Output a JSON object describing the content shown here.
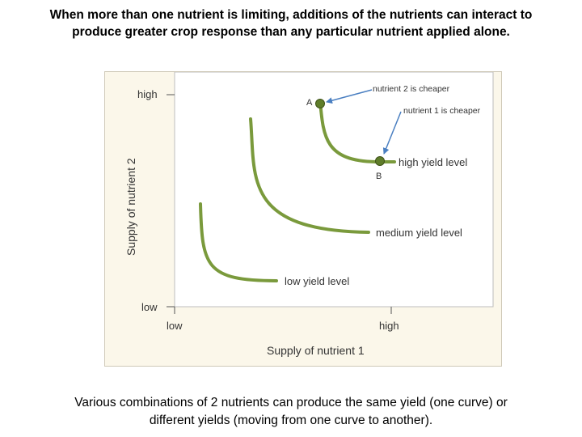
{
  "title": {
    "line1": "When more than one nutrient is limiting, additions of the nutrients can interact to",
    "line2": "produce greater crop response than any particular nutrient applied alone."
  },
  "diagram": {
    "y_axis_label": "Supply of nutrient 2",
    "x_axis_label": "Supply of nutrient 1",
    "y_tick_high": "high",
    "y_tick_low": "low",
    "x_tick_low": "low",
    "x_tick_high": "high",
    "curves": {
      "high": "high yield level",
      "medium": "medium yield level",
      "low": "low yield level"
    },
    "point_a": "A",
    "point_b": "B",
    "annotation_a": "nutrient 2 is cheaper",
    "annotation_b": "nutrient 1 is cheaper",
    "curve_color": "#7a9a3c",
    "arrow_color": "#4a7fc1"
  },
  "caption": {
    "line1": "Various combinations of 2 nutrients can produce the same yield (one curve) or",
    "line2": "different yields (moving from one curve to another)."
  }
}
